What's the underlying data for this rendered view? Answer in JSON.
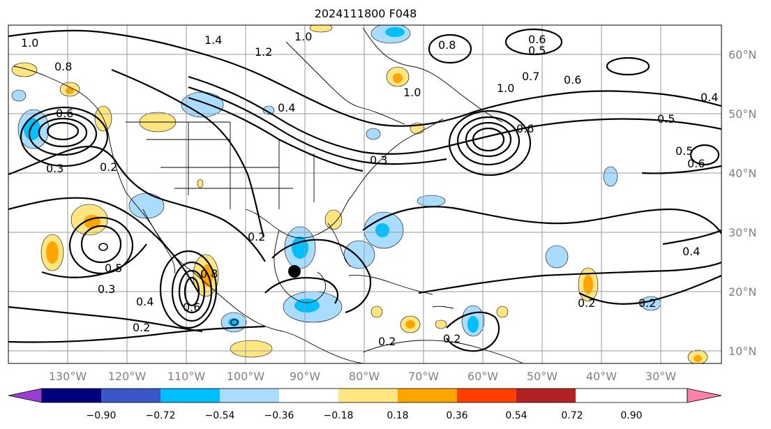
{
  "title": "2024111800 F048",
  "longitude_labels": [
    "130°W",
    "120°W",
    "110°W",
    "100°W",
    "90°W",
    "80°W",
    "70°W",
    "60°W",
    "50°W",
    "40°W",
    "30°W"
  ],
  "latitude_labels": [
    "60°N",
    "50°N",
    "40°N",
    "30°N",
    "20°N",
    "10°N"
  ],
  "contour_labels": [
    "1.0",
    "1.4",
    "1.2",
    "1.0",
    "0.8",
    "0.5",
    "0.6",
    "0.8",
    "0.6",
    "0.2",
    "0.3",
    "1.0",
    "1.0",
    "0.7",
    "0.6",
    "0.4",
    "0.5",
    "0.5",
    "0.6",
    "0.4",
    "0.2",
    "0.2",
    "0.2",
    "0.5",
    "0.3",
    "0.4",
    "0.2",
    "0.6",
    "0.2",
    "0.2",
    "0.8",
    "0.6",
    "0.3",
    "0.4"
  ],
  "colorbar": {
    "tick_labels": [
      "−0.90",
      "−0.72",
      "−0.54",
      "−0.36",
      "−0.18",
      "0.18",
      "0.36",
      "0.54",
      "0.72",
      "0.90"
    ],
    "colors": [
      "#9b3dd1",
      "#00007f",
      "#3a57c7",
      "#00bfff",
      "#aadcff",
      "#ffffff",
      "#ffe680",
      "#ffa500",
      "#ff3f00",
      "#b22222",
      "#ff80aa"
    ]
  },
  "marker": {
    "label": "storm-center",
    "lon": -91.5,
    "lat": 23.5
  }
}
